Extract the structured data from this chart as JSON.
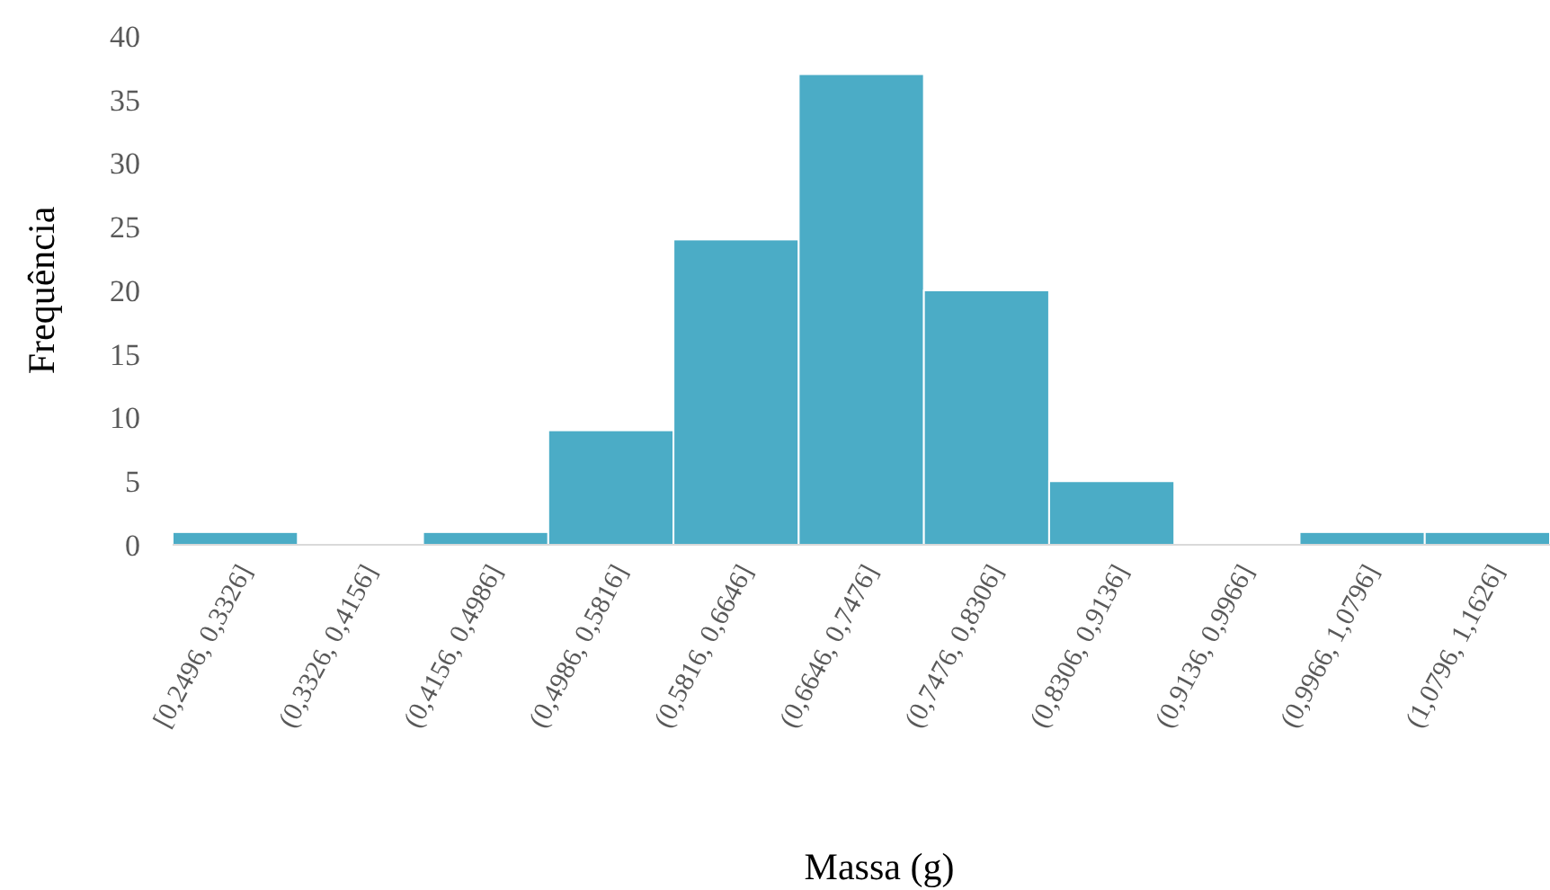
{
  "chart_data": {
    "type": "bar",
    "xlabel": "Massa (g)",
    "ylabel": "Frequência",
    "categories": [
      "[0,2496, 0,3326]",
      "(0,3326, 0,4156]",
      "(0,4156, 0,4986]",
      "(0,4986, 0,5816]",
      "(0,5816, 0,6646]",
      "(0,6646, 0,7476]",
      "(0,7476, 0,8306]",
      "(0,8306, 0,9136]",
      "(0,9136, 0,9966]",
      "(0,9966, 1,0796]",
      "(1,0796, 1,1626]"
    ],
    "values": [
      1,
      0,
      1,
      9,
      24,
      37,
      20,
      5,
      0,
      1,
      1
    ],
    "color": "#4bacc6",
    "ylim": [
      0,
      40
    ],
    "yticks": [
      0,
      5,
      10,
      15,
      20,
      25,
      30,
      35,
      40
    ],
    "grid": false
  }
}
